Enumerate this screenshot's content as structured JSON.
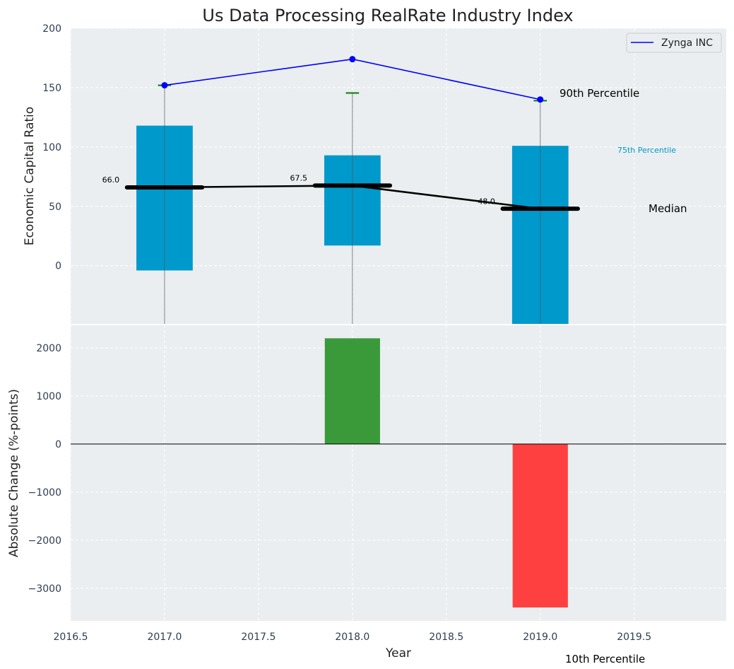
{
  "chart_data": [
    {
      "type": "bar",
      "title": "Us Data Processing RealRate Industry Index",
      "ylabel": "Economic Capital Ratio",
      "xlim": [
        2016.5,
        2019.99
      ],
      "ylim": [
        -49,
        200
      ],
      "yticks": [
        0,
        50,
        100,
        150,
        200
      ],
      "grid": true,
      "years": [
        2017,
        2018,
        2019
      ],
      "p25": [
        -4,
        17,
        -60
      ],
      "p75": [
        118,
        93,
        101
      ],
      "p10": [
        -60,
        -60,
        -60
      ],
      "p90": [
        152,
        145.5,
        139
      ],
      "median": [
        66.0,
        67.5,
        48.0
      ],
      "median_labels": [
        "66.0",
        "67.5",
        "48.0"
      ],
      "company": {
        "name": "Zynga INC",
        "values": [
          152,
          174,
          140
        ]
      },
      "legend": {
        "placement": "top-right",
        "entries": [
          "Zynga INC"
        ]
      },
      "annotations": [
        "90th Percentile",
        "75th Percentile",
        "Median",
        "10th Percentile"
      ],
      "colors": {
        "box": "#0099cc",
        "company": "#0000ff",
        "p90": "#008000",
        "median": "#000000"
      }
    },
    {
      "type": "bar",
      "ylabel": "Absolute Change (%-points)",
      "xlabel": "Year",
      "xlim": [
        2016.5,
        2019.99
      ],
      "ylim": [
        -3680,
        2470
      ],
      "yticks": [
        -3000,
        -2000,
        -1000,
        0,
        1000,
        2000
      ],
      "xticks": [
        2016.5,
        2017.0,
        2017.5,
        2018.0,
        2018.5,
        2019.0,
        2019.5
      ],
      "xtick_labels": [
        "2016.5",
        "2017.0",
        "2017.5",
        "2018.0",
        "2018.5",
        "2019.0",
        "2019.5"
      ],
      "years": [
        2018,
        2019
      ],
      "values": [
        2200,
        -3400
      ],
      "colors": {
        "positive": "#3a9a3a",
        "negative": "#ff4040"
      }
    }
  ]
}
